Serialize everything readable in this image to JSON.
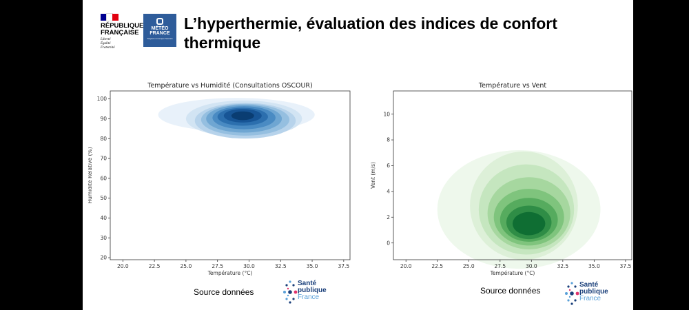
{
  "header": {
    "title": "L’hyperthermie, évaluation des indices de confort thermique",
    "logo_republique": {
      "lines": [
        "RÉPUBLIQUE",
        "FRANÇAISE"
      ],
      "motto": [
        "Liberté",
        "Égalité",
        "Fraternité"
      ],
      "flag_colors": [
        "#000091",
        "#ffffff",
        "#e1000f"
      ]
    },
    "logo_meteo": {
      "lines": [
        "MÉTÉO",
        "FRANCE"
      ],
      "tagline": "Toujours un temps d’avance",
      "color": "#2e5c9a"
    }
  },
  "chart_data": [
    {
      "type": "kde-contour",
      "title": "Température vs Humidité (Consultations OSCOUR)",
      "xlabel": "Température (°C)",
      "ylabel": "Humidité Relative (%)",
      "xlim": [
        19,
        38
      ],
      "ylim": [
        19,
        104
      ],
      "xticks": [
        "20.0",
        "22.5",
        "25.0",
        "27.5",
        "30.0",
        "32.5",
        "35.0",
        "37.5"
      ],
      "yticks": [
        "20",
        "30",
        "40",
        "50",
        "60",
        "70",
        "80",
        "90",
        "100"
      ],
      "grid": false,
      "colormap": "Blues",
      "peak": {
        "x": 29.5,
        "y": 91
      },
      "levels": [
        {
          "cx": 29.0,
          "cy": 92.0,
          "rx": 6.2,
          "ry": 8.5
        },
        {
          "cx": 29.6,
          "cy": 90.0,
          "rx": 4.6,
          "ry": 9.2
        },
        {
          "cx": 29.7,
          "cy": 89.0,
          "rx": 4.0,
          "ry": 9.0
        },
        {
          "cx": 29.7,
          "cy": 89.5,
          "rx": 3.5,
          "ry": 8.0
        },
        {
          "cx": 29.6,
          "cy": 90.0,
          "rx": 3.0,
          "ry": 7.0
        },
        {
          "cx": 29.6,
          "cy": 90.5,
          "rx": 2.5,
          "ry": 5.8
        },
        {
          "cx": 29.5,
          "cy": 91.0,
          "rx": 2.0,
          "ry": 4.5
        },
        {
          "cx": 29.5,
          "cy": 91.5,
          "rx": 1.5,
          "ry": 3.4
        },
        {
          "cx": 29.5,
          "cy": 91.5,
          "rx": 0.9,
          "ry": 2.2
        }
      ],
      "colors": [
        "#e8f1fa",
        "#d2e4f3",
        "#b7d3eb",
        "#95bfe0",
        "#6fa6d2",
        "#4a8bc3",
        "#2c6fae",
        "#175596",
        "#0a3d72"
      ]
    },
    {
      "type": "kde-contour",
      "title": "Température vs Vent",
      "xlabel": "Température (°C)",
      "ylabel": "Vent (m/s)",
      "xlim": [
        19,
        38
      ],
      "ylim": [
        -1.3,
        11.8
      ],
      "xticks": [
        "20.0",
        "22.5",
        "25.0",
        "27.5",
        "30.0",
        "32.5",
        "35.0",
        "37.5"
      ],
      "yticks": [
        "0",
        "2",
        "4",
        "6",
        "8",
        "10"
      ],
      "grid": false,
      "colormap": "Greens",
      "peak": {
        "x": 29.8,
        "y": 1.5
      },
      "levels": [
        {
          "cx": 29.0,
          "cy": 2.6,
          "rx": 6.5,
          "ry": 4.6
        },
        {
          "cx": 29.4,
          "cy": 2.9,
          "rx": 4.3,
          "ry": 4.2
        },
        {
          "cx": 29.6,
          "cy": 2.6,
          "rx": 3.8,
          "ry": 3.5
        },
        {
          "cx": 29.8,
          "cy": 2.3,
          "rx": 3.3,
          "ry": 2.8
        },
        {
          "cx": 29.8,
          "cy": 2.0,
          "rx": 2.8,
          "ry": 2.2
        },
        {
          "cx": 29.8,
          "cy": 1.8,
          "rx": 2.3,
          "ry": 1.7
        },
        {
          "cx": 29.8,
          "cy": 1.6,
          "rx": 1.8,
          "ry": 1.3
        },
        {
          "cx": 29.8,
          "cy": 1.5,
          "rx": 1.3,
          "ry": 0.9
        }
      ],
      "colors": [
        "#eef8ec",
        "#ddf0d8",
        "#c5e6bf",
        "#a6d79f",
        "#7fc47d",
        "#56ab5e",
        "#2f8d46",
        "#0f6e33"
      ]
    }
  ],
  "sources": [
    {
      "label": "Source données",
      "logo_lines": [
        "Santé",
        "publique",
        "France"
      ]
    },
    {
      "label": "Source données",
      "logo_lines": [
        "Santé",
        "publique",
        "France"
      ]
    }
  ],
  "sp_dot_colors": [
    "#1a3f7a",
    "#e0336d",
    "#5aa0d8"
  ]
}
